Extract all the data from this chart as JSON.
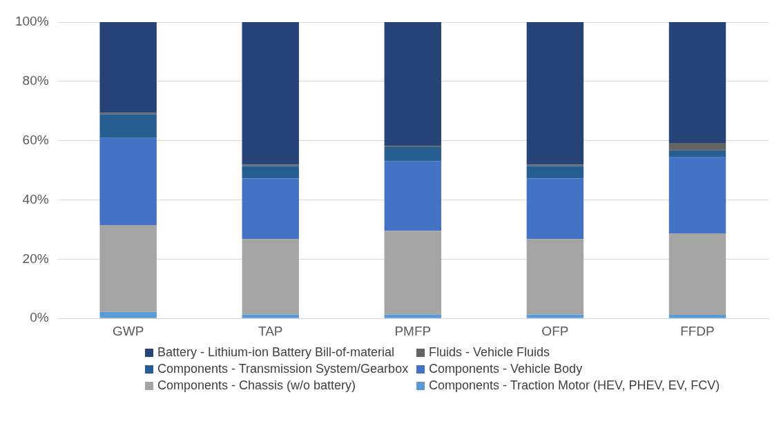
{
  "chart_data": {
    "type": "bar",
    "stacked": true,
    "categories": [
      "GWP",
      "TAP",
      "PMFP",
      "OFP",
      "FFDP"
    ],
    "series": [
      {
        "name": "Components - Traction Motor (HEV, PHEV, EV, FCV)",
        "color": "#5b9bd5",
        "values": [
          2.2,
          1.3,
          1.3,
          1.3,
          1.2
        ]
      },
      {
        "name": "Components - Chassis (w/o battery)",
        "color": "#a5a5a5",
        "values": [
          29.3,
          25.5,
          28.2,
          25.5,
          27.5
        ]
      },
      {
        "name": "Components - Vehicle Body",
        "color": "#4472c4",
        "values": [
          29.4,
          20.5,
          23.6,
          20.5,
          25.7
        ]
      },
      {
        "name": "Components - Transmission System/Gearbox",
        "color": "#255e91",
        "values": [
          8.0,
          4.1,
          4.7,
          4.1,
          2.3
        ]
      },
      {
        "name": "Fluids - Vehicle Fluids",
        "color": "#636363",
        "values": [
          0.5,
          0.5,
          0.4,
          0.5,
          2.5
        ]
      },
      {
        "name": "Battery - Lithium-ion Battery Bill-of-material",
        "color": "#264478",
        "values": [
          30.6,
          48.1,
          41.8,
          48.1,
          40.8
        ]
      }
    ],
    "ylim": [
      0,
      100
    ],
    "yticks": [
      {
        "value": 0,
        "label": "0%"
      },
      {
        "value": 20,
        "label": "20%"
      },
      {
        "value": 40,
        "label": "40%"
      },
      {
        "value": 60,
        "label": "60%"
      },
      {
        "value": 80,
        "label": "80%"
      },
      {
        "value": 100,
        "label": "100%"
      }
    ],
    "grid": "y",
    "legend": "bottom"
  }
}
